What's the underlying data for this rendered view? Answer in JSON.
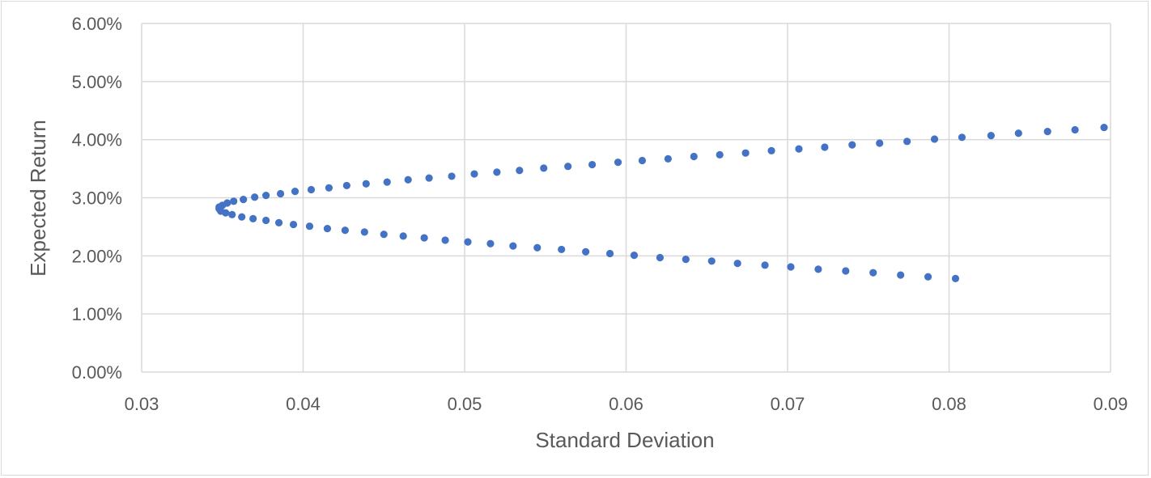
{
  "chart_data": {
    "type": "scatter",
    "title": "",
    "xlabel": "Standard Deviation",
    "ylabel": "Expected Return",
    "xlim": [
      0.03,
      0.09
    ],
    "ylim": [
      0,
      0.06
    ],
    "x_ticks": [
      0.03,
      0.04,
      0.05,
      0.06,
      0.07,
      0.08,
      0.09
    ],
    "x_tick_labels": [
      "0.03",
      "0.04",
      "0.05",
      "0.06",
      "0.07",
      "0.08",
      "0.09"
    ],
    "y_ticks": [
      0,
      0.01,
      0.02,
      0.03,
      0.04,
      0.05,
      0.06
    ],
    "y_tick_labels": [
      "0.00%",
      "1.00%",
      "2.00%",
      "3.00%",
      "4.00%",
      "5.00%",
      "6.00%"
    ],
    "grid": true,
    "legend": "none",
    "marker_color": "#4472c4",
    "series": [
      {
        "x": [
          0.0804,
          0.0787,
          0.077,
          0.0753,
          0.0736,
          0.0719,
          0.0702,
          0.0686,
          0.0669,
          0.0653,
          0.0637,
          0.0621,
          0.0605,
          0.059,
          0.0575,
          0.056,
          0.0545,
          0.053,
          0.0516,
          0.0502,
          0.0488,
          0.0475,
          0.0462,
          0.045,
          0.0438,
          0.0426,
          0.0415,
          0.0404,
          0.0394,
          0.0385,
          0.0377,
          0.0369,
          0.0362,
          0.0356,
          0.0352,
          0.0349,
          0.0348,
          0.0348,
          0.035,
          0.0353,
          0.0357,
          0.0363,
          0.037,
          0.0377,
          0.0386,
          0.0395,
          0.0405,
          0.0416,
          0.0427,
          0.0439,
          0.0452,
          0.0465,
          0.0478,
          0.0492,
          0.0506,
          0.052,
          0.0534,
          0.0549,
          0.0564,
          0.0579,
          0.0595,
          0.061,
          0.0626,
          0.0642,
          0.0658,
          0.0674,
          0.069,
          0.0707,
          0.0723,
          0.074,
          0.0757,
          0.0774,
          0.0791,
          0.0808,
          0.0826,
          0.0843,
          0.0861,
          0.0878,
          0.0896
        ],
        "y": [
          0.0161,
          0.0164,
          0.0167,
          0.0171,
          0.0174,
          0.0177,
          0.0181,
          0.0184,
          0.0187,
          0.0191,
          0.0194,
          0.0197,
          0.0201,
          0.0204,
          0.0207,
          0.0211,
          0.0214,
          0.0217,
          0.0221,
          0.0224,
          0.0227,
          0.0231,
          0.0234,
          0.0237,
          0.0241,
          0.0244,
          0.0247,
          0.0251,
          0.0254,
          0.0257,
          0.0261,
          0.0264,
          0.0267,
          0.0271,
          0.0274,
          0.0277,
          0.0281,
          0.0284,
          0.0287,
          0.0291,
          0.0294,
          0.0297,
          0.0301,
          0.0304,
          0.0307,
          0.0311,
          0.0314,
          0.0317,
          0.0321,
          0.0324,
          0.0327,
          0.0331,
          0.0334,
          0.0337,
          0.0341,
          0.0344,
          0.0347,
          0.0351,
          0.0354,
          0.0357,
          0.0361,
          0.0364,
          0.0367,
          0.0371,
          0.0374,
          0.0377,
          0.0381,
          0.0384,
          0.0387,
          0.0391,
          0.0394,
          0.0397,
          0.0401,
          0.0404,
          0.0407,
          0.0411,
          0.0414,
          0.0417,
          0.0421
        ]
      }
    ]
  }
}
